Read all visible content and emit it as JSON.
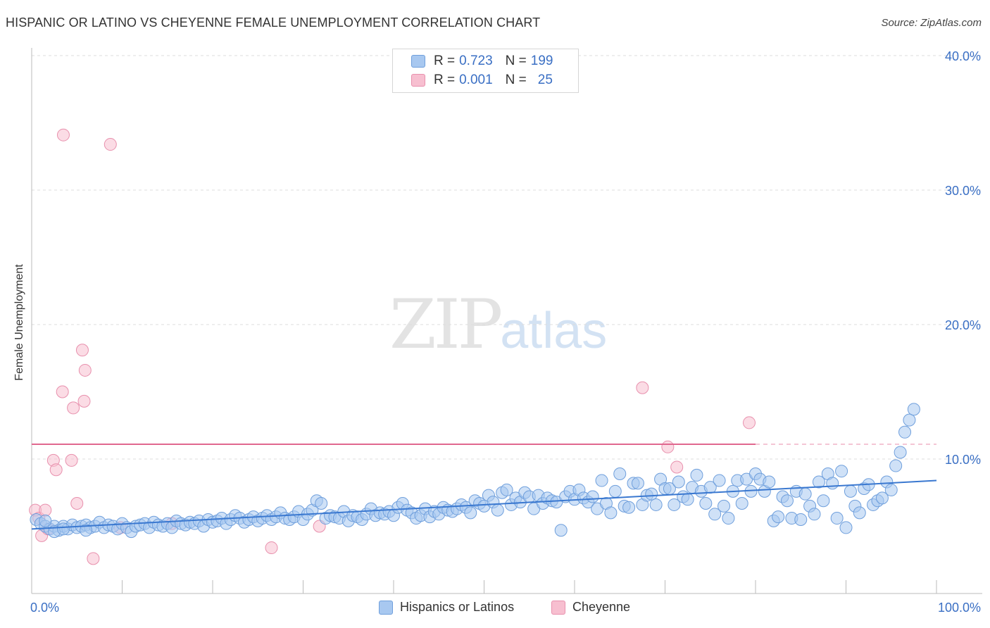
{
  "header": {
    "title": "HISPANIC OR LATINO VS CHEYENNE FEMALE UNEMPLOYMENT CORRELATION CHART",
    "source": "Source: ZipAtlas.com"
  },
  "watermark": {
    "zip": "ZIP",
    "atlas": "atlas"
  },
  "legend": {
    "rows": [
      {
        "r_label": "R = ",
        "r_value": "0.723",
        "n_label": "N = ",
        "n_value": "199"
      },
      {
        "r_label": "R = ",
        "r_value": "0.001",
        "n_label": "N = ",
        "n_value": "25"
      }
    ]
  },
  "bottom_legend": {
    "items": [
      {
        "label": "Hispanics or Latinos"
      },
      {
        "label": "Cheyenne"
      }
    ]
  },
  "colors": {
    "blue_fill": "#a8c8f0",
    "blue_stroke": "#6f9fdc",
    "blue_line": "#3a78d0",
    "pink_fill": "#f7bfd0",
    "pink_stroke": "#e890ad",
    "pink_line": "#e0688f",
    "tick_label": "#3a6fc4"
  },
  "chart_data": {
    "type": "scatter",
    "title": "HISPANIC OR LATINO VS CHEYENNE FEMALE UNEMPLOYMENT CORRELATION CHART",
    "xlabel": "",
    "ylabel": "Female Unemployment",
    "xlim": [
      0,
      100
    ],
    "ylim": [
      0,
      40
    ],
    "x_tick_labels": [
      "0.0%",
      "100.0%"
    ],
    "y_ticks": [
      10,
      20,
      30,
      40
    ],
    "y_tick_labels": [
      "10.0%",
      "20.0%",
      "30.0%",
      "40.0%"
    ],
    "grid": true,
    "series": [
      {
        "name": "Hispanics or Latinos",
        "r": 0.723,
        "n": 199,
        "trend": {
          "x": [
            0,
            100
          ],
          "y": [
            4.8,
            8.4
          ]
        },
        "points": [
          [
            0.5,
            5.5
          ],
          [
            1,
            5.2
          ],
          [
            1.5,
            5
          ],
          [
            2,
            4.8
          ],
          [
            2.5,
            5
          ],
          [
            3,
            4.7
          ],
          [
            3.5,
            5
          ],
          [
            4,
            4.8
          ],
          [
            4.5,
            5.1
          ],
          [
            5,
            4.9
          ],
          [
            5.5,
            5
          ],
          [
            6,
            5.1
          ],
          [
            6.5,
            4.9
          ],
          [
            7,
            5
          ],
          [
            7.5,
            5.3
          ],
          [
            8,
            4.9
          ],
          [
            8.5,
            5.1
          ],
          [
            9,
            5
          ],
          [
            9.5,
            4.8
          ],
          [
            10,
            5.2
          ],
          [
            10.5,
            4.9
          ],
          [
            11,
            4.6
          ],
          [
            11.5,
            5
          ],
          [
            12,
            5.1
          ],
          [
            12.5,
            5.2
          ],
          [
            13,
            4.9
          ],
          [
            13.5,
            5.3
          ],
          [
            14,
            5.1
          ],
          [
            14.5,
            5
          ],
          [
            15,
            5.2
          ],
          [
            15.5,
            4.9
          ],
          [
            16,
            5.4
          ],
          [
            16.5,
            5.2
          ],
          [
            17,
            5.1
          ],
          [
            17.5,
            5.3
          ],
          [
            18,
            5.2
          ],
          [
            18.5,
            5.4
          ],
          [
            19,
            5
          ],
          [
            19.5,
            5.5
          ],
          [
            20,
            5.3
          ],
          [
            20.5,
            5.4
          ],
          [
            21,
            5.6
          ],
          [
            21.5,
            5.2
          ],
          [
            22,
            5.5
          ],
          [
            22.5,
            5.8
          ],
          [
            23,
            5.6
          ],
          [
            23.5,
            5.3
          ],
          [
            24,
            5.5
          ],
          [
            24.5,
            5.7
          ],
          [
            25,
            5.4
          ],
          [
            25.5,
            5.6
          ],
          [
            26,
            5.8
          ],
          [
            26.5,
            5.5
          ],
          [
            27,
            5.7
          ],
          [
            27.5,
            6
          ],
          [
            28,
            5.6
          ],
          [
            28.5,
            5.5
          ],
          [
            29,
            5.7
          ],
          [
            29.5,
            6.1
          ],
          [
            30,
            5.5
          ],
          [
            30.5,
            5.9
          ],
          [
            31,
            6.2
          ],
          [
            31.5,
            6.9
          ],
          [
            32,
            6.7
          ],
          [
            32.5,
            5.6
          ],
          [
            33,
            5.8
          ],
          [
            33.5,
            5.7
          ],
          [
            34,
            5.6
          ],
          [
            34.5,
            6.1
          ],
          [
            35,
            5.4
          ],
          [
            35.5,
            5.8
          ],
          [
            36,
            5.7
          ],
          [
            36.5,
            5.5
          ],
          [
            37,
            5.9
          ],
          [
            37.5,
            6.3
          ],
          [
            38,
            5.8
          ],
          [
            38.5,
            6
          ],
          [
            39,
            5.9
          ],
          [
            39.5,
            6.1
          ],
          [
            40,
            5.8
          ],
          [
            40.5,
            6.4
          ],
          [
            41,
            6.7
          ],
          [
            41.5,
            6.2
          ],
          [
            42,
            6
          ],
          [
            42.5,
            5.6
          ],
          [
            43,
            5.8
          ],
          [
            43.5,
            6.3
          ],
          [
            44,
            5.7
          ],
          [
            44.5,
            6.1
          ],
          [
            45,
            5.9
          ],
          [
            45.5,
            6.4
          ],
          [
            46,
            6.2
          ],
          [
            46.5,
            6.1
          ],
          [
            47,
            6.3
          ],
          [
            47.5,
            6.6
          ],
          [
            48,
            6.4
          ],
          [
            48.5,
            6
          ],
          [
            49,
            6.9
          ],
          [
            49.5,
            6.7
          ],
          [
            50,
            6.5
          ],
          [
            50.5,
            7.3
          ],
          [
            51,
            6.8
          ],
          [
            51.5,
            6.2
          ],
          [
            52,
            7.5
          ],
          [
            52.5,
            7.7
          ],
          [
            53,
            6.6
          ],
          [
            53.5,
            7.1
          ],
          [
            54,
            6.8
          ],
          [
            54.5,
            7.5
          ],
          [
            55,
            7.2
          ],
          [
            55.5,
            6.3
          ],
          [
            56,
            7.3
          ],
          [
            56.5,
            6.7
          ],
          [
            57,
            7.1
          ],
          [
            57.5,
            6.9
          ],
          [
            58,
            6.8
          ],
          [
            58.5,
            4.7
          ],
          [
            59,
            7.2
          ],
          [
            59.5,
            7.6
          ],
          [
            60,
            7
          ],
          [
            60.5,
            7.7
          ],
          [
            61,
            7.1
          ],
          [
            61.5,
            6.8
          ],
          [
            62,
            7.2
          ],
          [
            62.5,
            6.3
          ],
          [
            63,
            8.4
          ],
          [
            63.5,
            6.7
          ],
          [
            64,
            6
          ],
          [
            64.5,
            7.6
          ],
          [
            65,
            8.9
          ],
          [
            65.5,
            6.5
          ],
          [
            66,
            6.4
          ],
          [
            66.5,
            8.2
          ],
          [
            67,
            8.2
          ],
          [
            67.5,
            6.6
          ],
          [
            68,
            7.3
          ],
          [
            68.5,
            7.4
          ],
          [
            69,
            6.6
          ],
          [
            69.5,
            8.5
          ],
          [
            70,
            7.8
          ],
          [
            70.5,
            7.8
          ],
          [
            71,
            6.6
          ],
          [
            71.5,
            8.3
          ],
          [
            72,
            7.2
          ],
          [
            72.5,
            7
          ],
          [
            73,
            7.9
          ],
          [
            73.5,
            8.8
          ],
          [
            74,
            7.6
          ],
          [
            74.5,
            6.7
          ],
          [
            75,
            7.9
          ],
          [
            75.5,
            5.9
          ],
          [
            76,
            8.4
          ],
          [
            76.5,
            6.5
          ],
          [
            77,
            5.6
          ],
          [
            77.5,
            7.6
          ],
          [
            78,
            8.4
          ],
          [
            78.5,
            6.7
          ],
          [
            79,
            8.5
          ],
          [
            79.5,
            7.6
          ],
          [
            80,
            8.9
          ],
          [
            80.5,
            8.5
          ],
          [
            81,
            7.6
          ],
          [
            81.5,
            8.3
          ],
          [
            82,
            5.4
          ],
          [
            82.5,
            5.7
          ],
          [
            83,
            7.2
          ],
          [
            83.5,
            6.9
          ],
          [
            84,
            5.6
          ],
          [
            84.5,
            7.6
          ],
          [
            85,
            5.5
          ],
          [
            85.5,
            7.4
          ],
          [
            86,
            6.5
          ],
          [
            86.5,
            5.9
          ],
          [
            87,
            8.3
          ],
          [
            87.5,
            6.9
          ],
          [
            88,
            8.9
          ],
          [
            88.5,
            8.2
          ],
          [
            89,
            5.6
          ],
          [
            89.5,
            9.1
          ],
          [
            90,
            4.9
          ],
          [
            90.5,
            7.6
          ],
          [
            91,
            6.5
          ],
          [
            91.5,
            6
          ],
          [
            92,
            7.8
          ],
          [
            92.5,
            8.1
          ],
          [
            93,
            6.6
          ],
          [
            93.5,
            6.9
          ],
          [
            94,
            7.1
          ],
          [
            94.5,
            8.3
          ],
          [
            95,
            7.7
          ],
          [
            95.5,
            9.5
          ],
          [
            96,
            10.5
          ],
          [
            96.5,
            12
          ],
          [
            97,
            12.9
          ],
          [
            97.5,
            13.7
          ],
          [
            1.5,
            5.4
          ],
          [
            2.5,
            4.6
          ],
          [
            3.5,
            4.8
          ],
          [
            6,
            4.7
          ]
        ]
      },
      {
        "name": "Cheyenne",
        "r": 0.001,
        "n": 25,
        "trend": {
          "x": [
            0,
            80
          ],
          "y": [
            11.1,
            11.1
          ],
          "dashed_to": 100
        },
        "points": [
          [
            0.4,
            6.2
          ],
          [
            0.8,
            5.6
          ],
          [
            1.1,
            4.3
          ],
          [
            1.5,
            6.2
          ],
          [
            1.8,
            4.8
          ],
          [
            2.4,
            9.9
          ],
          [
            2.7,
            9.2
          ],
          [
            3.4,
            15
          ],
          [
            3.5,
            34.1
          ],
          [
            4.4,
            9.9
          ],
          [
            4.6,
            13.8
          ],
          [
            5,
            6.7
          ],
          [
            5.6,
            18.1
          ],
          [
            5.8,
            14.3
          ],
          [
            5.9,
            16.6
          ],
          [
            6.8,
            2.6
          ],
          [
            8.7,
            33.4
          ],
          [
            9.8,
            4.9
          ],
          [
            15.5,
            5.2
          ],
          [
            26.5,
            3.4
          ],
          [
            31.8,
            5
          ],
          [
            67.5,
            15.3
          ],
          [
            70.3,
            10.9
          ],
          [
            71.3,
            9.4
          ],
          [
            79.3,
            12.7
          ]
        ]
      }
    ]
  }
}
